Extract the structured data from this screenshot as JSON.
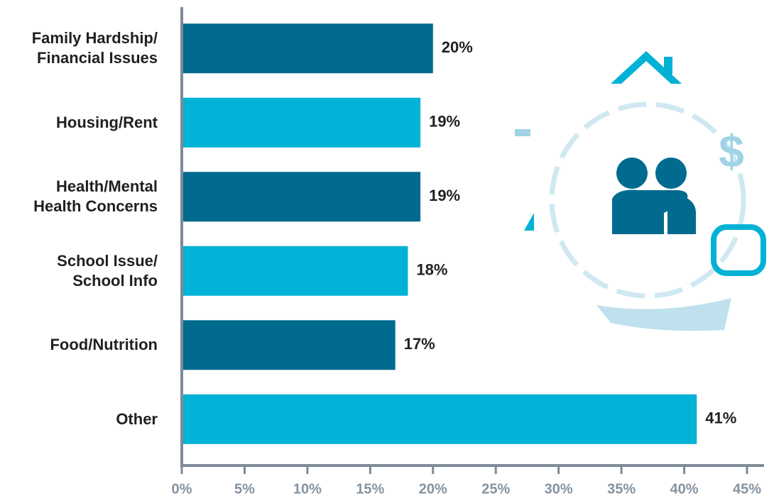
{
  "chart_data": {
    "type": "bar",
    "orientation": "horizontal",
    "categories": [
      "Family Hardship/\nFinancial Issues",
      "Housing/Rent",
      "Health/Mental\nHealth Concerns",
      "School Issue/\nSchool Info",
      "Food/Nutrition",
      "Other"
    ],
    "values": [
      20,
      19,
      19,
      18,
      17,
      41
    ],
    "value_labels": [
      "20%",
      "19%",
      "19%",
      "18%",
      "17%",
      "41%"
    ],
    "colors": [
      "#006b8f",
      "#00b2d6",
      "#006b8f",
      "#00b2d6",
      "#006b8f",
      "#00b2d6"
    ],
    "xlim": [
      0,
      45
    ],
    "xticks": [
      {
        "value": 0,
        "label": "0%"
      },
      {
        "value": 5,
        "label": "5%"
      },
      {
        "value": 10,
        "label": "10%"
      },
      {
        "value": 15,
        "label": "15%"
      },
      {
        "value": 20,
        "label": "20%"
      },
      {
        "value": 25,
        "label": "25%"
      },
      {
        "value": 30,
        "label": "30%"
      },
      {
        "value": 35,
        "label": "35%"
      },
      {
        "value": 40,
        "label": "40%"
      },
      {
        "value": 45,
        "label": "45%"
      }
    ]
  }
}
